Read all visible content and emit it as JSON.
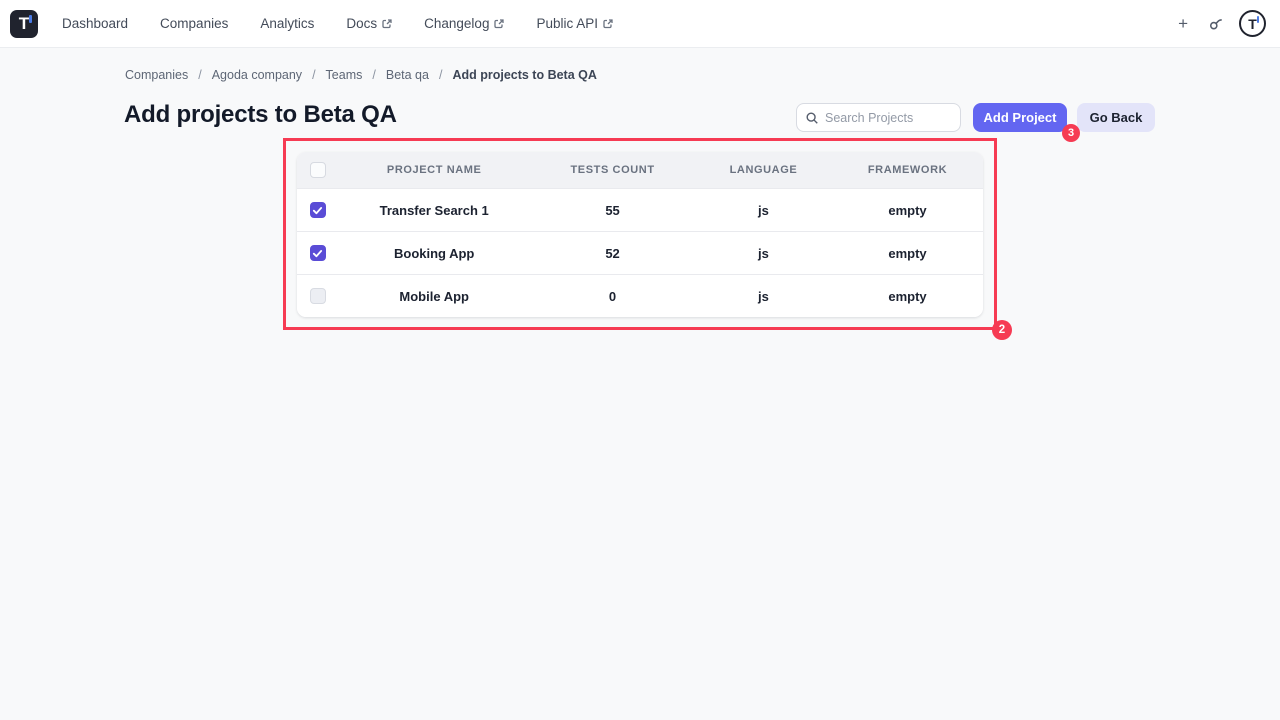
{
  "nav": {
    "brand": "T",
    "items": [
      {
        "label": "Dashboard",
        "external": false
      },
      {
        "label": "Companies",
        "external": false
      },
      {
        "label": "Analytics",
        "external": false
      },
      {
        "label": "Docs",
        "external": true
      },
      {
        "label": "Changelog",
        "external": true
      },
      {
        "label": "Public API",
        "external": true
      }
    ],
    "icons": {
      "plus": "plus-icon",
      "lens": "search-lens-icon",
      "avatar": "user-avatar"
    }
  },
  "breadcrumb": {
    "separator": "/",
    "items": [
      "Companies",
      "Agoda company",
      "Teams",
      "Beta qa",
      "Add projects to Beta QA"
    ]
  },
  "page": {
    "title": "Add projects to Beta QA"
  },
  "toolbar": {
    "search_placeholder": "Search Projects",
    "add_project_label": "Add Project",
    "go_back_label": "Go Back"
  },
  "annotations": {
    "badge_table": "2",
    "badge_add_project": "3",
    "color": "#f63b53"
  },
  "table": {
    "columns": [
      "PROJECT NAME",
      "TESTS COUNT",
      "LANGUAGE",
      "FRAMEWORK"
    ],
    "header_checkbox_checked": false,
    "rows": [
      {
        "checked": true,
        "name": "Transfer Search 1",
        "tests_count": "55",
        "language": "js",
        "framework": "empty"
      },
      {
        "checked": true,
        "name": "Booking App",
        "tests_count": "52",
        "language": "js",
        "framework": "empty"
      },
      {
        "checked": false,
        "name": "Mobile App",
        "tests_count": "0",
        "language": "js",
        "framework": "empty"
      }
    ]
  },
  "colors": {
    "accent_indigo": "#6366f1",
    "checkbox_indigo": "#5a4cd6",
    "annotation_red": "#f63b53",
    "page_background": "#f8f9fa"
  }
}
